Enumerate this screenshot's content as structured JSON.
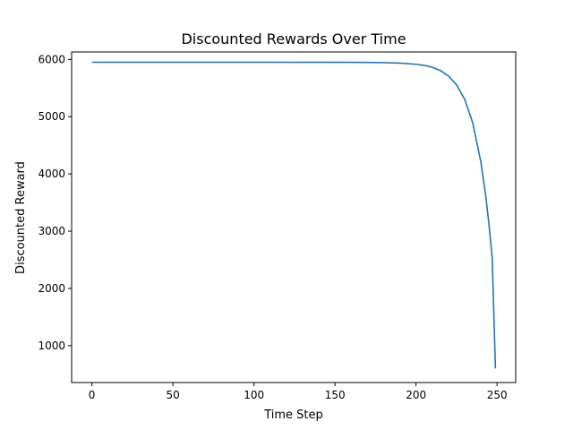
{
  "chart_data": {
    "type": "line",
    "title": "Discounted Rewards Over Time",
    "xlabel": "Time Step",
    "ylabel": "Discounted Reward",
    "xlim": [
      -12.5,
      261.5
    ],
    "ylim": [
      356,
      6130
    ],
    "xticks": [
      0,
      50,
      100,
      150,
      200,
      250
    ],
    "yticks": [
      1000,
      2000,
      3000,
      4000,
      5000,
      6000
    ],
    "grid": false,
    "series": [
      {
        "color": "#1f77b4",
        "x": [
          0,
          50,
          100,
          150,
          170,
          180,
          190,
          200,
          205,
          210,
          215,
          220,
          225,
          230,
          235,
          240,
          243,
          245,
          247,
          249
        ],
        "values": [
          5950,
          5950,
          5950,
          5949,
          5947,
          5943,
          5935,
          5915,
          5896,
          5862,
          5806,
          5711,
          5556,
          5304,
          4891,
          4208,
          3619,
          3121,
          2533,
          600
        ]
      }
    ]
  }
}
